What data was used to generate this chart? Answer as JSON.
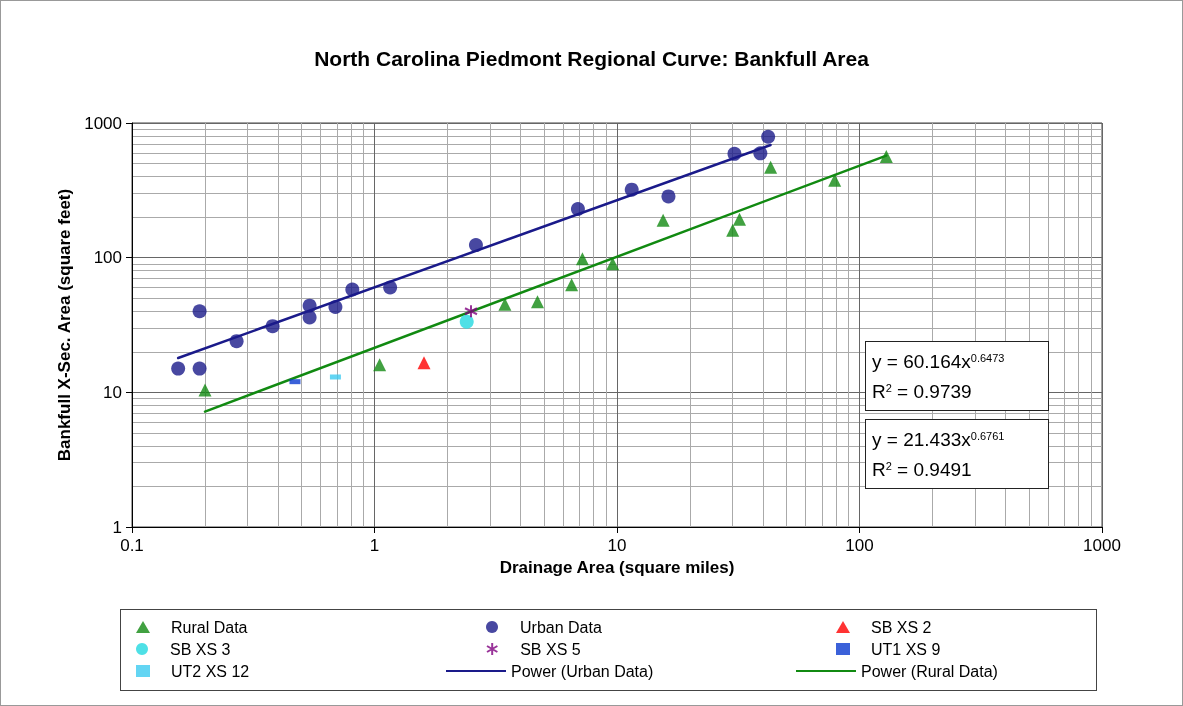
{
  "chart_data": {
    "type": "scatter",
    "title": "North Carolina Piedmont Regional Curve: Bankfull Area",
    "xlabel": "Drainage Area (square miles)",
    "ylabel": "Bankfull X-Sec. Area (square feet)",
    "log": "xy",
    "xlim": [
      0.1,
      1000
    ],
    "xticks": [
      0.1,
      1,
      10,
      100,
      1000
    ],
    "ylim": [
      1,
      1000
    ],
    "yticks": [
      1,
      10,
      100,
      1000
    ],
    "grid": true,
    "legend": "bottom",
    "series": [
      {
        "name": "Rural Data",
        "marker": "triangle",
        "color": "#118a11",
        "x": [
          0.2,
          1.05,
          3.45,
          4.7,
          6.5,
          7.2,
          9.6,
          15.5,
          30,
          32,
          43,
          79,
          129
        ],
        "values": [
          10.4,
          16,
          45,
          47,
          63,
          98,
          90,
          190,
          160,
          193,
          470,
          375,
          565
        ]
      },
      {
        "name": "Urban Data",
        "marker": "circle",
        "color": "#1a1a8a",
        "x": [
          0.155,
          0.19,
          0.19,
          0.27,
          0.38,
          0.54,
          0.54,
          0.69,
          0.81,
          1.16,
          2.62,
          6.9,
          11.5,
          16.3,
          30.5,
          39,
          42
        ],
        "values": [
          15,
          40,
          15,
          24,
          31,
          44,
          36,
          43,
          58,
          60,
          124,
          230,
          320,
          285,
          590,
          595,
          790
        ]
      },
      {
        "name": "SB XS 2",
        "marker": "triangle",
        "color": "#ff0000",
        "x": [
          1.6
        ],
        "values": [
          16.6
        ]
      },
      {
        "name": "SB XS 3",
        "marker": "circle",
        "color": "#22d8e0",
        "x": [
          2.4
        ],
        "values": [
          33.5
        ]
      },
      {
        "name": "SB XS 5",
        "marker": "cross",
        "color": "#800080",
        "x": [
          2.5
        ],
        "values": [
          40
        ]
      },
      {
        "name": "UT1 XS 9",
        "marker": "square",
        "color": "#0a3ad0",
        "x": [
          0.47
        ],
        "values": [
          12
        ]
      },
      {
        "name": "UT2 XS 12",
        "marker": "square",
        "color": "#3ccaf0",
        "x": [
          0.69
        ],
        "values": [
          13
        ]
      },
      {
        "name": "Power (Urban Data)",
        "type": "line",
        "marker": "none",
        "color": "#1a1a8a",
        "x": [
          0.155,
          43
        ],
        "values": [
          18,
          687
        ]
      },
      {
        "name": "Power (Rural Data)",
        "type": "line",
        "marker": "none",
        "color": "#118a11",
        "x": [
          0.2,
          129
        ],
        "values": [
          7.2,
          573
        ]
      }
    ],
    "annotations": [
      "y = 60.164x$^{0.6473}$\nR$^{2}$ = 0.9739",
      "y = 21.433x$^{0.6761}$\nR$^{2}$ = 0.9491"
    ]
  }
}
